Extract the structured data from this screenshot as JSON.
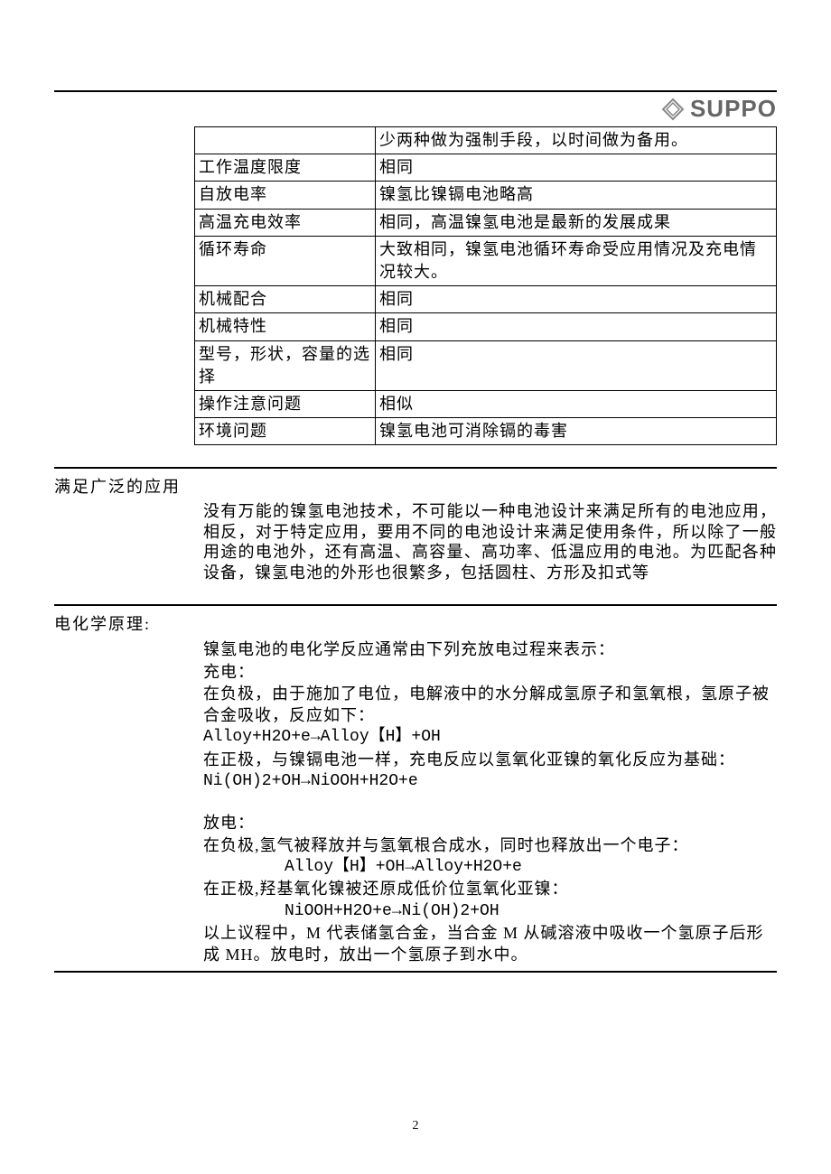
{
  "logo": {
    "text": "SUPPO",
    "icon_color": "#888888"
  },
  "table": {
    "rows": [
      {
        "col1": "",
        "col2": "少两种做为强制手段，以时间做为备用。"
      },
      {
        "col1": "工作温度限度",
        "col2": "相同"
      },
      {
        "col1": "自放电率",
        "col2": "镍氢比镍镉电池略高"
      },
      {
        "col1": "高温充电效率",
        "col2": "相同，高温镍氢电池是最新的发展成果"
      },
      {
        "col1": "循环寿命",
        "col2": "大致相同，镍氢电池循环寿命受应用情况及充电情况较大。"
      },
      {
        "col1": "机械配合",
        "col2": "相同"
      },
      {
        "col1": "机械特性",
        "col2": "相同"
      },
      {
        "col1": "型号，形状，容量的选择",
        "col2": "相同"
      },
      {
        "col1": "操作注意问题",
        "col2": "相似"
      },
      {
        "col1": "环境问题",
        "col2": "镍氢电池可消除镉的毒害"
      }
    ]
  },
  "section_app": {
    "title": "满足广泛的应用",
    "body": "没有万能的镍氢电池技术，不可能以一种电池设计来满足所有的电池应用，相反，对于特定应用，要用不同的电池设计来满足使用条件，所以除了一般用途的电池外，还有高温、高容量、高功率、低温应用的电池。为匹配各种设备，镍氢电池的外形也很繁多，包括圆柱、方形及扣式等"
  },
  "section_chem": {
    "title": "电化学原理:",
    "intro": "镍氢电池的电化学反应通常由下列充放电过程来表示：",
    "charge_label": "充电：",
    "charge_neg": "在负极，由于施加了电位，电解液中的水分解成氢原子和氢氧根，氢原子被合金吸收，反应如下：",
    "charge_neg_formula": "Alloy+H2O+e→Alloy【H】+OH",
    "charge_pos": "在正极，与镍镉电池一样，充电反应以氢氧化亚镍的氧化反应为基础：",
    "charge_pos_formula": "Ni(OH)2+OH→NiOOH+H2O+e",
    "discharge_label": "放电：",
    "discharge_neg": "在负极,氢气被释放并与氢氧根合成水，同时也释放出一个电子：",
    "discharge_neg_formula": "Alloy【H】+OH→Alloy+H2O+e",
    "discharge_pos": "在正极,羟基氧化镍被还原成低价位氢氧化亚镍：",
    "discharge_pos_formula": "NiOOH+H2O+e→Ni(OH)2+OH",
    "summary": "以上议程中，M 代表储氢合金，当合金 M 从碱溶液中吸收一个氢原子后形成 MH。放电时，放出一个氢原子到水中。"
  },
  "page_number": "2"
}
